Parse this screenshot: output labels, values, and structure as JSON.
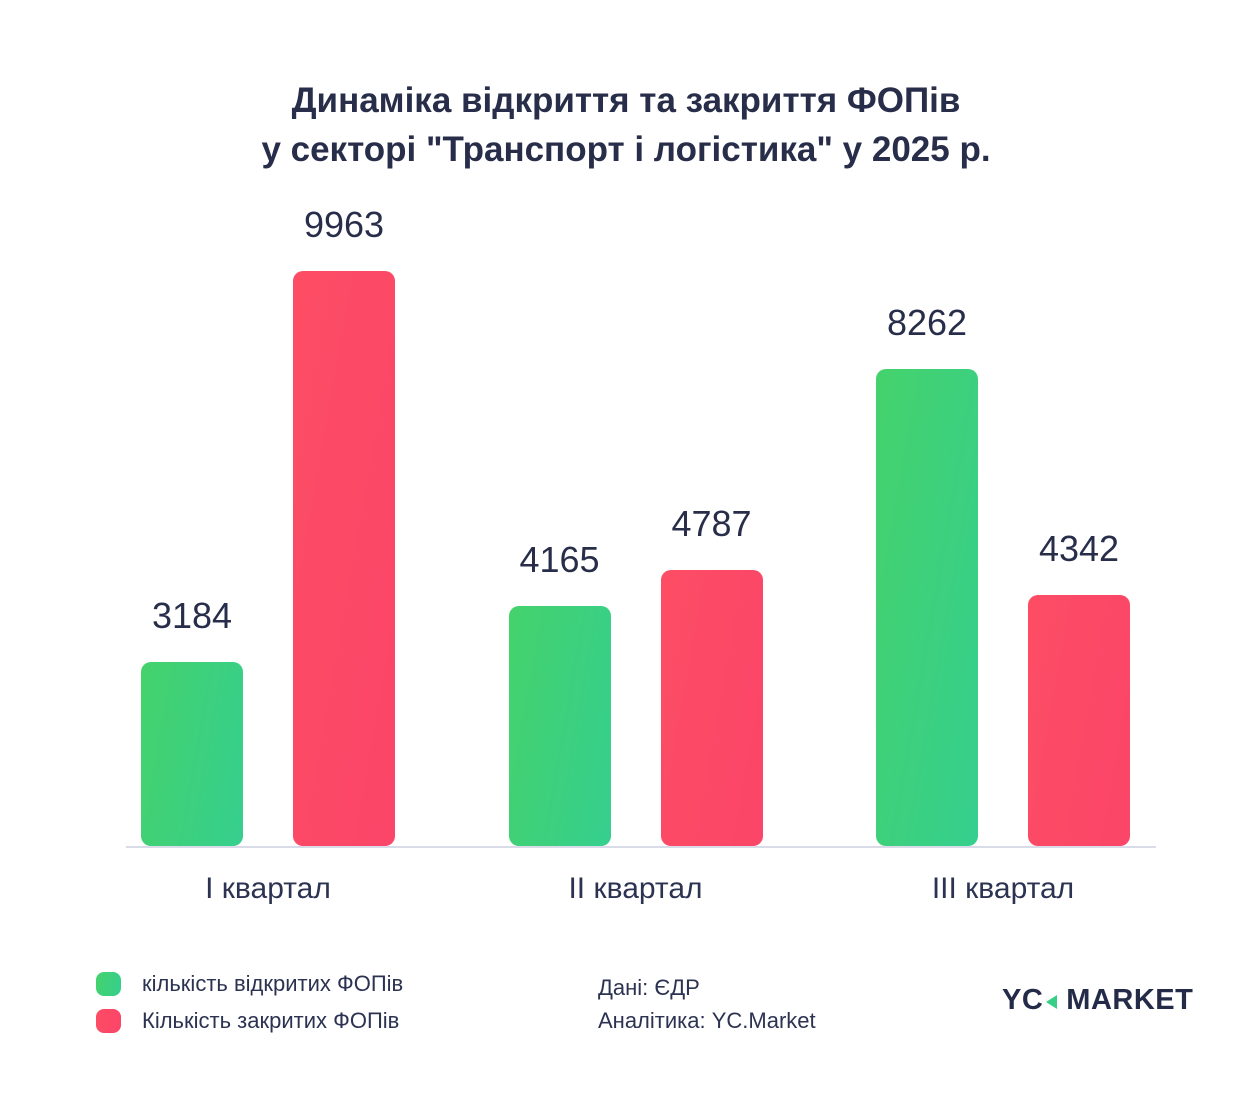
{
  "title": {
    "line1": "Динаміка відкриття та закриття ФОПів",
    "line2": "у секторі \"Транспорт і логістика\" у 2025 р."
  },
  "chart_data": {
    "type": "bar",
    "categories": [
      "I квартал",
      "II квартал",
      "III квартал"
    ],
    "series": [
      {
        "name": "кількість відкритих ФОПів",
        "key": "opened",
        "values": [
          3184,
          4165,
          8262
        ],
        "color": "#3ed17c",
        "color_start": "#45d26c",
        "color_end": "#35cf8e"
      },
      {
        "name": "Кількість закритих ФОПів",
        "key": "closed",
        "values": [
          9963,
          4787,
          4342
        ],
        "color": "#fc4a68",
        "color_start": "#fd4d64",
        "color_end": "#fb4569"
      }
    ],
    "ylim": [
      0,
      9963
    ],
    "grid": false,
    "value_labels": true,
    "legend_position": "bottom-left",
    "axis_line_color": "#d9dce8"
  },
  "footer": {
    "source": "Дані: ЄДР",
    "analytics": "Аналітика: YC.Market"
  },
  "logo": {
    "part1": "YC",
    "part2": "MARKET",
    "accent_color": "#37ce85"
  }
}
